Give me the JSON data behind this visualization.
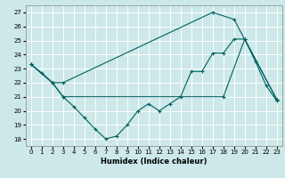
{
  "xlabel": "Humidex (Indice chaleur)",
  "xlim": [
    -0.5,
    23.5
  ],
  "ylim": [
    17.5,
    27.5
  ],
  "yticks": [
    18,
    19,
    20,
    21,
    22,
    23,
    24,
    25,
    26,
    27
  ],
  "xticks": [
    0,
    1,
    2,
    3,
    4,
    5,
    6,
    7,
    8,
    9,
    10,
    11,
    12,
    13,
    14,
    15,
    16,
    17,
    18,
    19,
    20,
    21,
    22,
    23
  ],
  "bg_color": "#cce8e8",
  "grid_color": "#ffffff",
  "line_color": "#006060",
  "series1_x": [
    0,
    1,
    2,
    3,
    4,
    5,
    6,
    7,
    8,
    9,
    10,
    11,
    12,
    13,
    14,
    15,
    16,
    17,
    18,
    19,
    20,
    21,
    22,
    23
  ],
  "series1_y": [
    23.3,
    22.7,
    22.0,
    21.0,
    20.3,
    19.5,
    18.7,
    18.0,
    18.2,
    19.0,
    20.0,
    20.5,
    20.0,
    20.5,
    21.0,
    22.8,
    22.8,
    24.1,
    24.1,
    25.1,
    25.1,
    23.5,
    21.8,
    20.7
  ],
  "series2_x": [
    0,
    2,
    3,
    17,
    19,
    23
  ],
  "series2_y": [
    23.3,
    22.0,
    22.0,
    27.0,
    26.5,
    20.8
  ],
  "series3_x": [
    0,
    2,
    3,
    18,
    20,
    23
  ],
  "series3_y": [
    23.3,
    22.0,
    21.0,
    21.0,
    25.1,
    20.8
  ]
}
